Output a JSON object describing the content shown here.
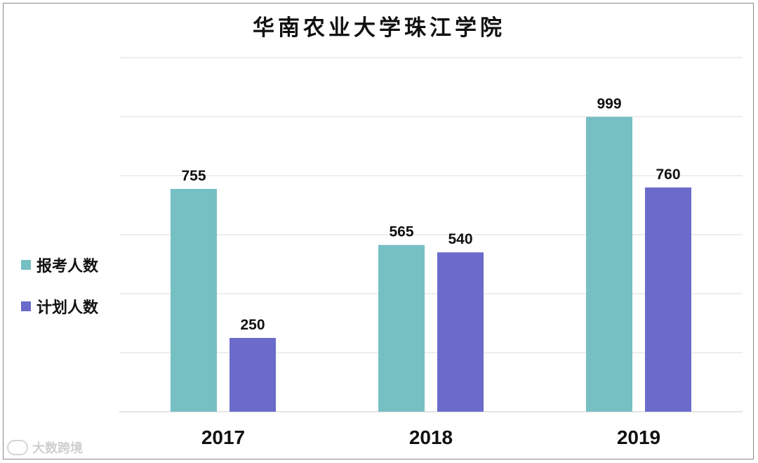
{
  "chart_data": {
    "type": "bar",
    "title": "华南农业大学珠江学院",
    "categories": [
      "2017",
      "2018",
      "2019"
    ],
    "series": [
      {
        "name": "报考人数",
        "values": [
          755,
          565,
          999
        ],
        "color": "#76bfc3"
      },
      {
        "name": "计划人数",
        "values": [
          250,
          540,
          760
        ],
        "color": "#6b6bcb"
      }
    ],
    "ylim": [
      0,
      1200
    ],
    "grid": true,
    "legend_position": "left"
  },
  "watermark": {
    "text": "大数跨境",
    "icon": "logo-icon"
  }
}
